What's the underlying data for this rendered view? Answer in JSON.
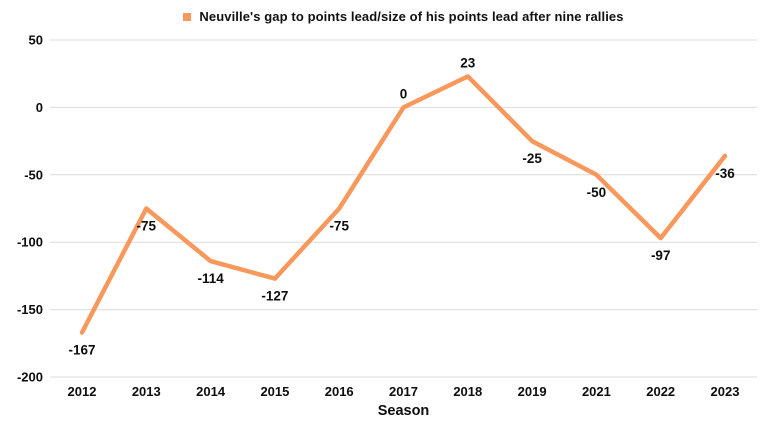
{
  "chart_data": {
    "type": "line",
    "legend": "Neuville's gap to points lead/size of his points lead after nine rallies",
    "categories": [
      "2012",
      "2013",
      "2014",
      "2015",
      "2016",
      "2017",
      "2018",
      "2019",
      "2021",
      "2022",
      "2023"
    ],
    "values": [
      -167,
      -75,
      -114,
      -127,
      -75,
      0,
      23,
      -25,
      -50,
      -97,
      -36
    ],
    "data_labels": [
      "-167",
      "-75",
      "-114",
      "-127",
      "-75",
      "0",
      "23",
      "-25",
      "-50",
      "-97",
      "-36"
    ],
    "title": "",
    "xlabel": "Season",
    "ylabel": "",
    "ylim": [
      -200,
      50
    ],
    "yticks": [
      50,
      0,
      -50,
      -100,
      -150,
      -200
    ],
    "ytick_labels": [
      "50",
      "0",
      "-50",
      "-100",
      "-150",
      "-200"
    ],
    "grid": true,
    "legend_position": "top",
    "colors": {
      "line": "#F8985C",
      "grid": "#DCDCDC",
      "text": "#0d0d0d",
      "background": "#ffffff"
    }
  }
}
